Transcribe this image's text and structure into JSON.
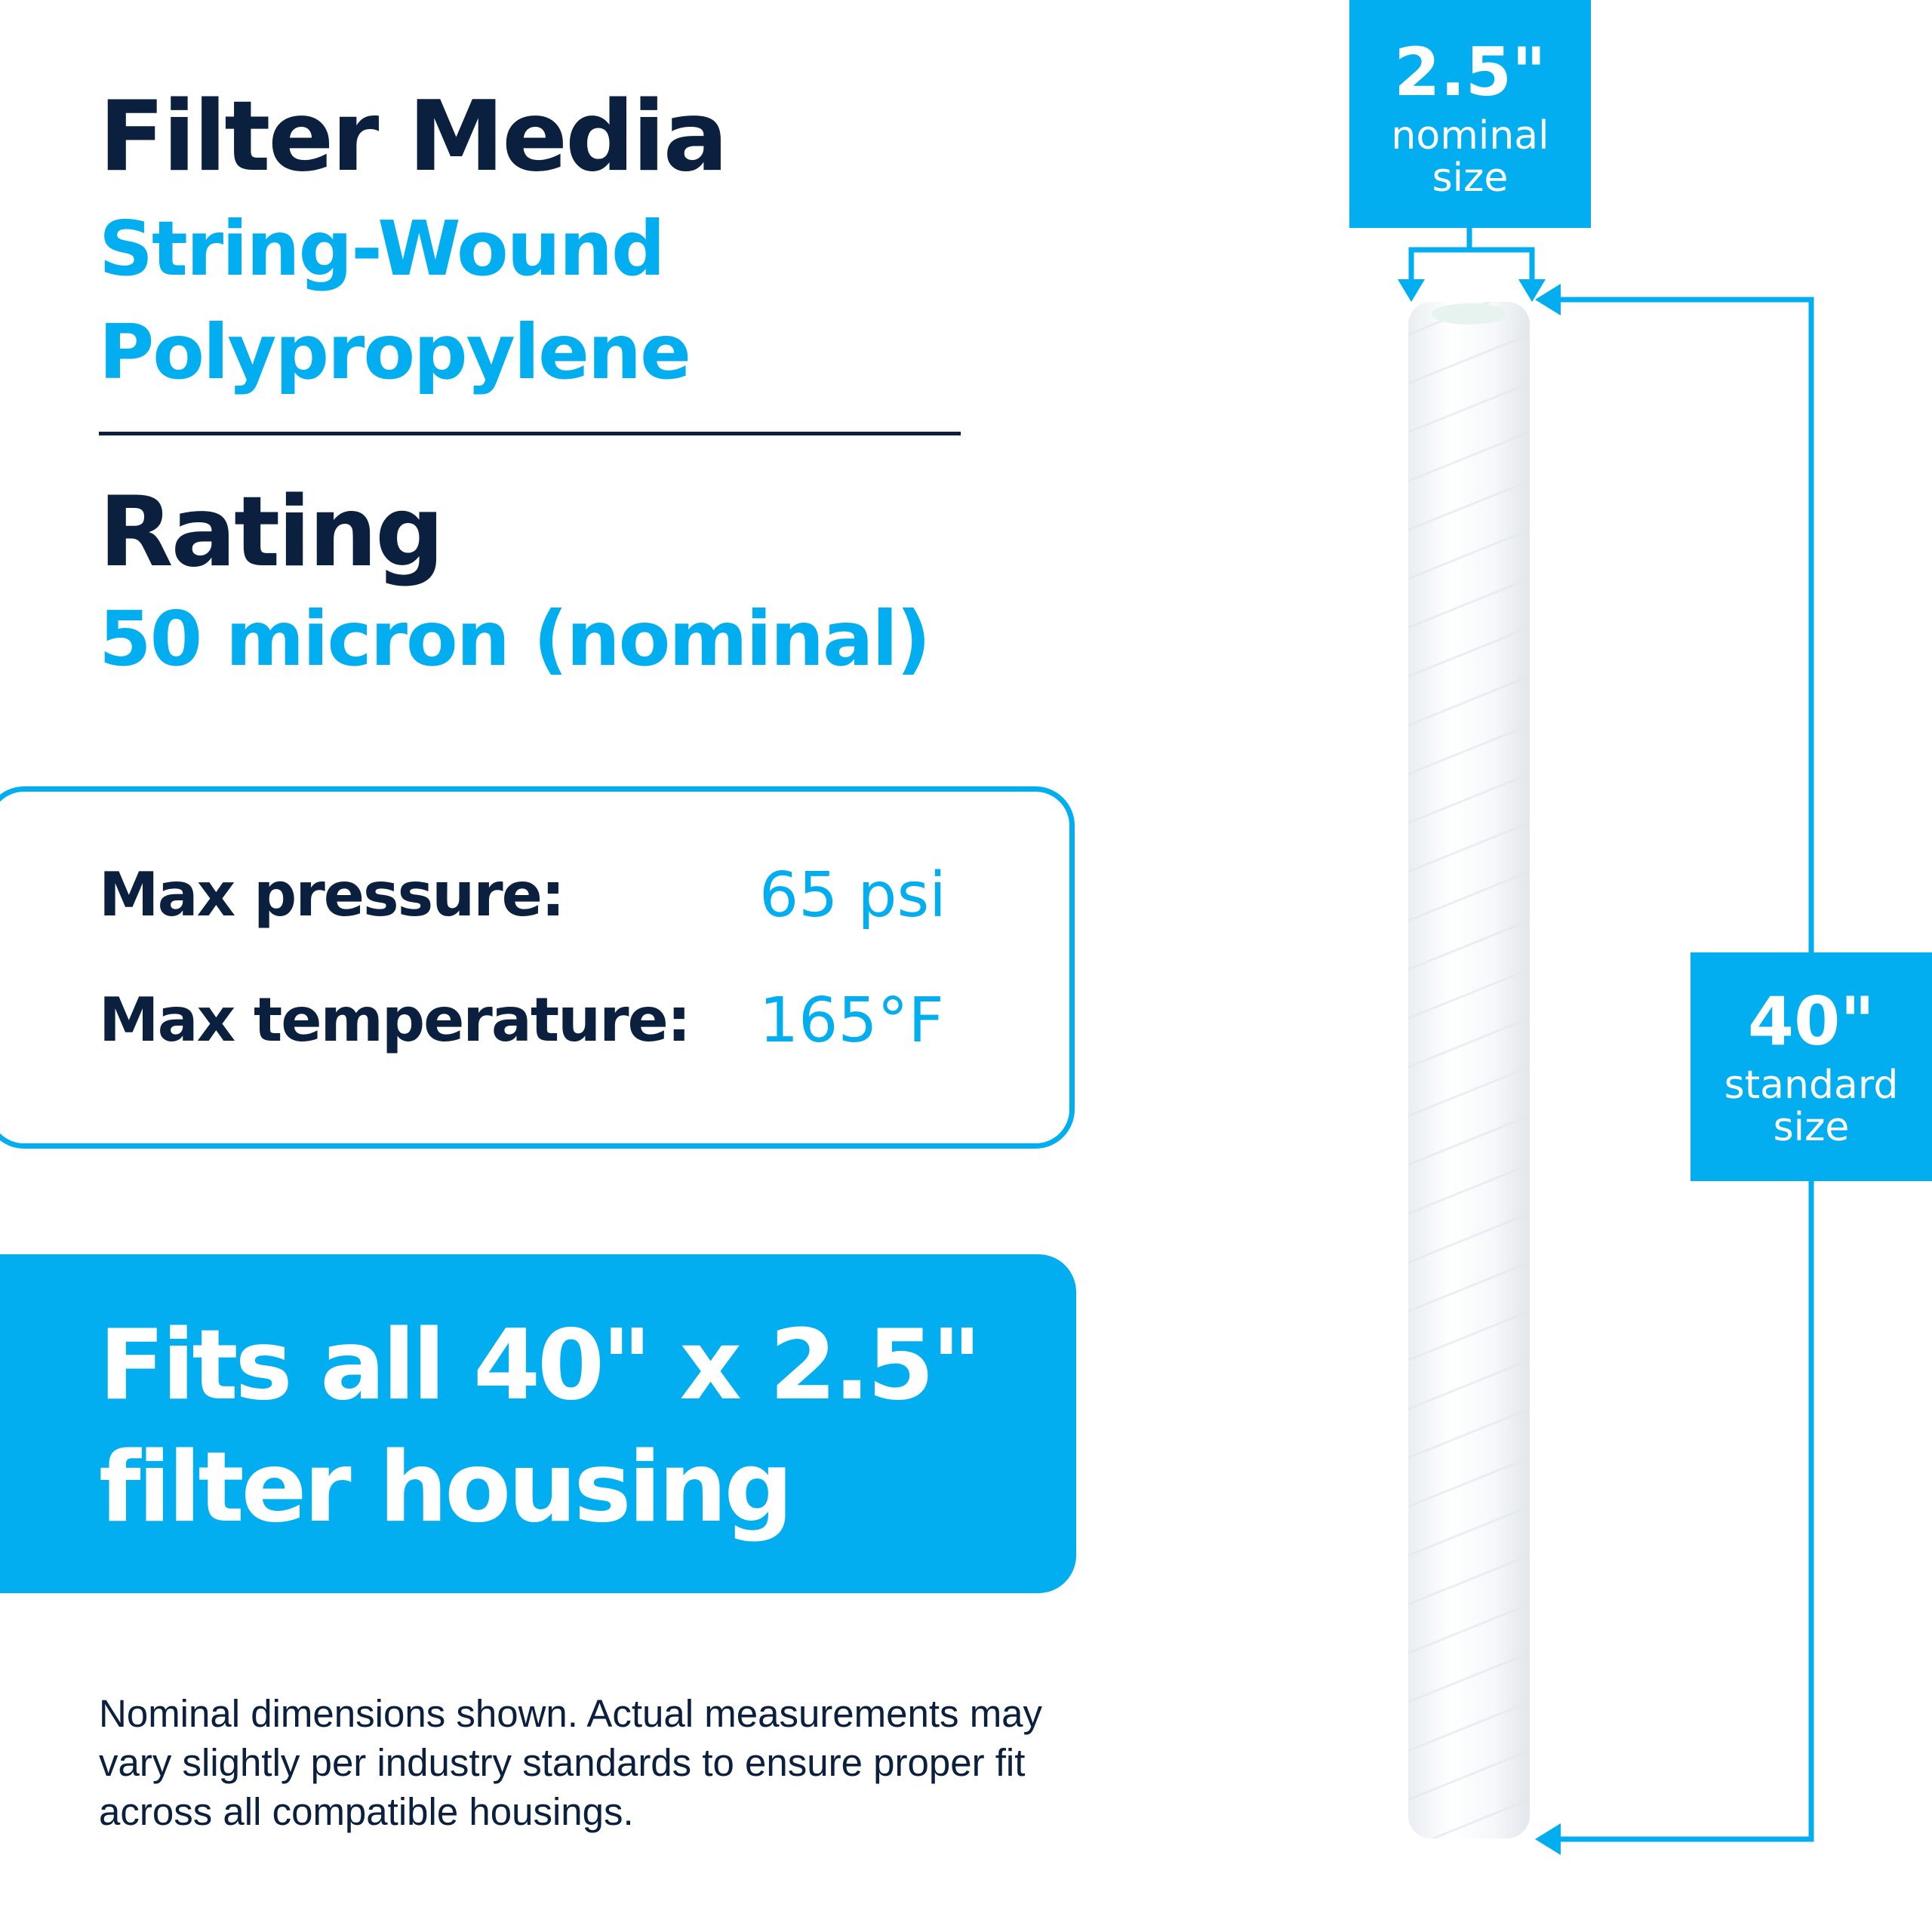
{
  "filter_media": {
    "heading": "Filter Media",
    "line1": "String-Wound",
    "line2": "Polypropylene"
  },
  "rating": {
    "heading": "Rating",
    "value": "50 micron (nominal)"
  },
  "specs": [
    {
      "label": "Max pressure:",
      "value": "65 psi"
    },
    {
      "label": "Max temperature:",
      "value": "165°F"
    }
  ],
  "fit": {
    "line1": "Fits all 40\" x 2.5\"",
    "line2": "filter housing"
  },
  "note": "Nominal dimensions shown. Actual measurements may vary slightly per industry standards to ensure proper fit across all compatible housings.",
  "dimensions": {
    "diameter": {
      "value": "2.5\"",
      "line1": "nominal",
      "line2": "size"
    },
    "length": {
      "value": "40\"",
      "line1": "standard",
      "line2": "size"
    }
  },
  "colors": {
    "accent": "#02aeef",
    "navy": "#0b1f3f"
  }
}
